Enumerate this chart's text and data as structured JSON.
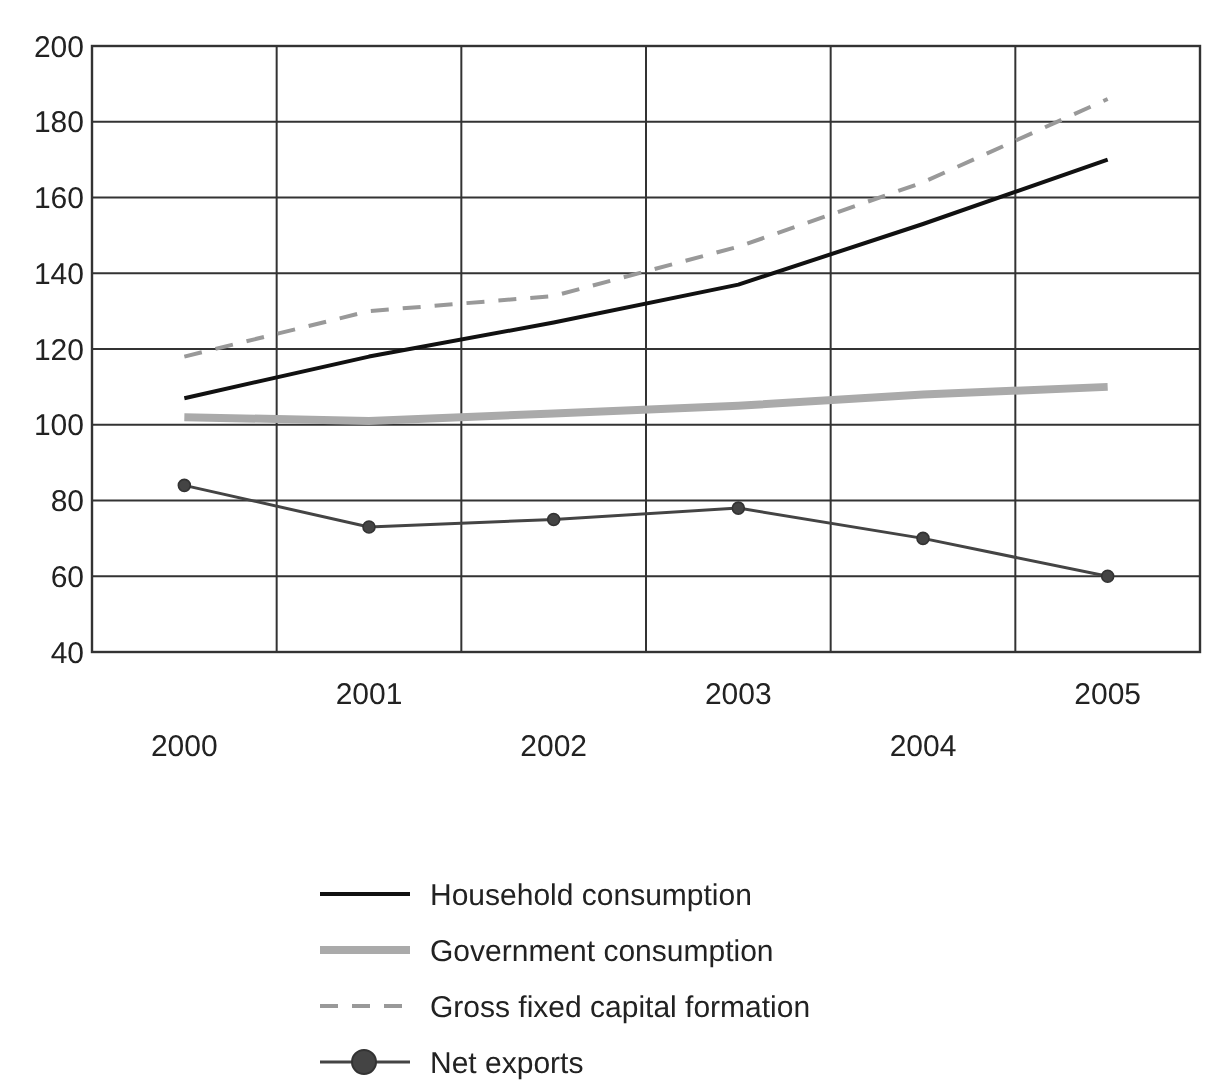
{
  "chart_data": {
    "type": "line",
    "categories": [
      "2000",
      "2001",
      "2002",
      "2003",
      "2004",
      "2005"
    ],
    "series": [
      {
        "name": "Household consumption",
        "color": "#111111",
        "values": [
          107,
          118,
          127,
          137,
          153,
          170
        ],
        "line_style": "solid",
        "marker": "none"
      },
      {
        "name": "Government consumption",
        "color": "#aaaaaa",
        "values": [
          102,
          101,
          103,
          105,
          108,
          110
        ],
        "line_style": "solid",
        "marker": "none"
      },
      {
        "name": "Gross fixed capital formation",
        "color": "#999999",
        "values": [
          118,
          130,
          134,
          147,
          164,
          186
        ],
        "line_style": "dashed",
        "marker": "none"
      },
      {
        "name": "Net exports",
        "color": "#444444",
        "values": [
          84,
          73,
          75,
          78,
          70,
          60
        ],
        "line_style": "solid",
        "marker": "circle"
      }
    ],
    "ylim": [
      40,
      200
    ],
    "yticks": [
      40,
      60,
      80,
      100,
      120,
      140,
      160,
      180,
      200
    ],
    "grid": true,
    "legend": "bottom"
  }
}
